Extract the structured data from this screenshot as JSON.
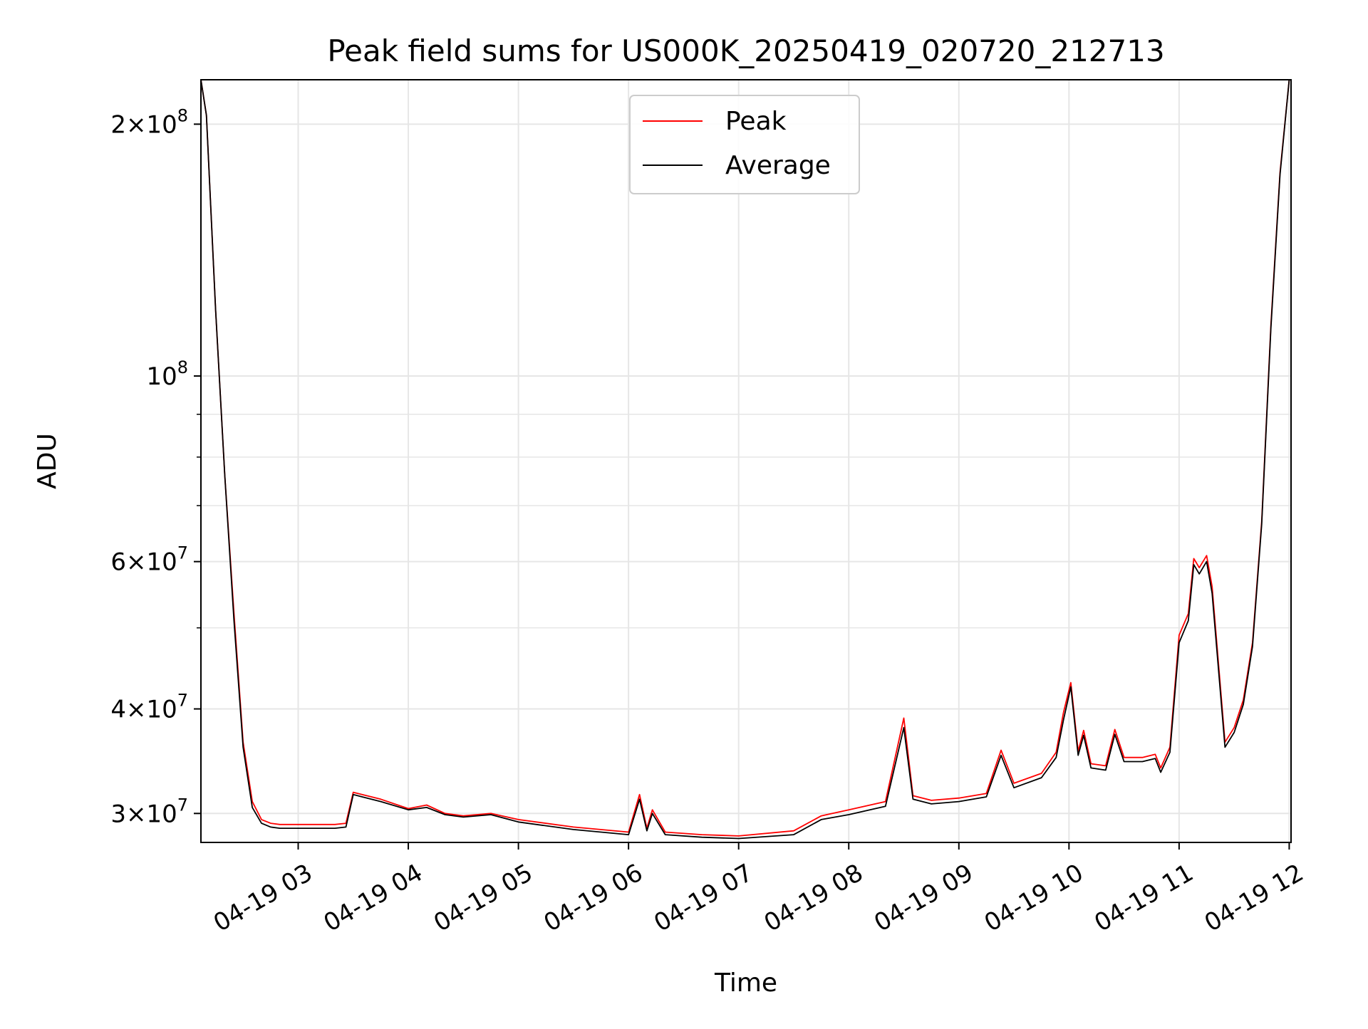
{
  "chart_data": {
    "type": "line",
    "title": "Peak field sums for US000K_20250419_020720_212713",
    "xlabel": "Time",
    "ylabel": "ADU",
    "yscale": "log",
    "ylim": [
      27700000,
      226000000
    ],
    "xlim": [
      "2025-04-19 02:07",
      "2025-04-19 12:01"
    ],
    "grid": true,
    "legend_position": "top-center",
    "x_ticks": [
      {
        "value": "2025-04-19 03:00",
        "label": "04-19 03"
      },
      {
        "value": "2025-04-19 04:00",
        "label": "04-19 04"
      },
      {
        "value": "2025-04-19 05:00",
        "label": "04-19 05"
      },
      {
        "value": "2025-04-19 06:00",
        "label": "04-19 06"
      },
      {
        "value": "2025-04-19 07:00",
        "label": "04-19 07"
      },
      {
        "value": "2025-04-19 08:00",
        "label": "04-19 08"
      },
      {
        "value": "2025-04-19 09:00",
        "label": "04-19 09"
      },
      {
        "value": "2025-04-19 10:00",
        "label": "04-19 10"
      },
      {
        "value": "2025-04-19 11:00",
        "label": "04-19 11"
      },
      {
        "value": "2025-04-19 12:00",
        "label": "04-19 12"
      }
    ],
    "y_ticks": [
      {
        "value": 30000000,
        "mantissa": "3",
        "exponent": "7",
        "plain": false
      },
      {
        "value": 40000000,
        "mantissa": "4",
        "exponent": "7",
        "plain": false
      },
      {
        "value": 60000000,
        "mantissa": "6",
        "exponent": "7",
        "plain": false
      },
      {
        "value": 100000000,
        "mantissa": "",
        "exponent": "8",
        "plain": true
      },
      {
        "value": 200000000,
        "mantissa": "2",
        "exponent": "8",
        "plain": false
      }
    ],
    "y_minor_ticks": [
      50000000,
      70000000,
      80000000,
      90000000
    ],
    "series": [
      {
        "name": "Peak",
        "color": "#ff0000",
        "x": [
          "2025-04-19 02:07",
          "2025-04-19 02:10",
          "2025-04-19 02:15",
          "2025-04-19 02:20",
          "2025-04-19 02:25",
          "2025-04-19 02:30",
          "2025-04-19 02:35",
          "2025-04-19 02:40",
          "2025-04-19 02:45",
          "2025-04-19 02:50",
          "2025-04-19 03:00",
          "2025-04-19 03:10",
          "2025-04-19 03:20",
          "2025-04-19 03:26",
          "2025-04-19 03:30",
          "2025-04-19 03:45",
          "2025-04-19 04:00",
          "2025-04-19 04:10",
          "2025-04-19 04:20",
          "2025-04-19 04:30",
          "2025-04-19 04:45",
          "2025-04-19 05:00",
          "2025-04-19 05:30",
          "2025-04-19 06:00",
          "2025-04-19 06:06",
          "2025-04-19 06:10",
          "2025-04-19 06:13",
          "2025-04-19 06:20",
          "2025-04-19 06:40",
          "2025-04-19 07:00",
          "2025-04-19 07:30",
          "2025-04-19 07:45",
          "2025-04-19 08:00",
          "2025-04-19 08:20",
          "2025-04-19 08:30",
          "2025-04-19 08:35",
          "2025-04-19 08:45",
          "2025-04-19 09:00",
          "2025-04-19 09:15",
          "2025-04-19 09:23",
          "2025-04-19 09:30",
          "2025-04-19 09:45",
          "2025-04-19 09:53",
          "2025-04-19 09:57",
          "2025-04-19 10:01",
          "2025-04-19 10:05",
          "2025-04-19 10:08",
          "2025-04-19 10:12",
          "2025-04-19 10:20",
          "2025-04-19 10:25",
          "2025-04-19 10:30",
          "2025-04-19 10:40",
          "2025-04-19 10:47",
          "2025-04-19 10:50",
          "2025-04-19 10:55",
          "2025-04-19 11:00",
          "2025-04-19 11:05",
          "2025-04-19 11:08",
          "2025-04-19 11:11",
          "2025-04-19 11:15",
          "2025-04-19 11:18",
          "2025-04-19 11:25",
          "2025-04-19 11:30",
          "2025-04-19 11:35",
          "2025-04-19 11:40",
          "2025-04-19 11:45",
          "2025-04-19 11:50",
          "2025-04-19 11:55",
          "2025-04-19 12:00"
        ],
        "values": [
          226000000,
          205000000,
          120000000,
          76000000,
          52000000,
          36500000,
          31000000,
          29500000,
          29200000,
          29100000,
          29100000,
          29100000,
          29100000,
          29200000,
          31800000,
          31200000,
          30400000,
          30700000,
          30000000,
          29800000,
          30000000,
          29500000,
          28900000,
          28500000,
          31600000,
          28800000,
          30300000,
          28500000,
          28300000,
          28200000,
          28600000,
          29800000,
          30300000,
          31000000,
          39000000,
          31500000,
          31100000,
          31300000,
          31700000,
          35700000,
          32600000,
          33500000,
          35500000,
          39600000,
          43000000,
          35600000,
          37700000,
          34400000,
          34200000,
          37800000,
          35000000,
          35000000,
          35300000,
          34000000,
          36000000,
          49000000,
          52000000,
          60500000,
          59000000,
          61000000,
          56000000,
          36500000,
          38000000,
          41000000,
          48000000,
          67000000,
          115000000,
          175000000,
          226000000
        ]
      },
      {
        "name": "Average",
        "color": "#000000",
        "x": [
          "2025-04-19 02:07",
          "2025-04-19 02:10",
          "2025-04-19 02:15",
          "2025-04-19 02:20",
          "2025-04-19 02:25",
          "2025-04-19 02:30",
          "2025-04-19 02:35",
          "2025-04-19 02:40",
          "2025-04-19 02:45",
          "2025-04-19 02:50",
          "2025-04-19 03:00",
          "2025-04-19 03:10",
          "2025-04-19 03:20",
          "2025-04-19 03:26",
          "2025-04-19 03:30",
          "2025-04-19 03:45",
          "2025-04-19 04:00",
          "2025-04-19 04:10",
          "2025-04-19 04:20",
          "2025-04-19 04:30",
          "2025-04-19 04:45",
          "2025-04-19 05:00",
          "2025-04-19 05:30",
          "2025-04-19 06:00",
          "2025-04-19 06:06",
          "2025-04-19 06:10",
          "2025-04-19 06:13",
          "2025-04-19 06:20",
          "2025-04-19 06:40",
          "2025-04-19 07:00",
          "2025-04-19 07:30",
          "2025-04-19 07:45",
          "2025-04-19 08:00",
          "2025-04-19 08:20",
          "2025-04-19 08:30",
          "2025-04-19 08:35",
          "2025-04-19 08:45",
          "2025-04-19 09:00",
          "2025-04-19 09:15",
          "2025-04-19 09:23",
          "2025-04-19 09:30",
          "2025-04-19 09:45",
          "2025-04-19 09:53",
          "2025-04-19 09:57",
          "2025-04-19 10:01",
          "2025-04-19 10:05",
          "2025-04-19 10:08",
          "2025-04-19 10:12",
          "2025-04-19 10:20",
          "2025-04-19 10:25",
          "2025-04-19 10:30",
          "2025-04-19 10:40",
          "2025-04-19 10:47",
          "2025-04-19 10:50",
          "2025-04-19 10:55",
          "2025-04-19 11:00",
          "2025-04-19 11:05",
          "2025-04-19 11:08",
          "2025-04-19 11:11",
          "2025-04-19 11:15",
          "2025-04-19 11:18",
          "2025-04-19 11:25",
          "2025-04-19 11:30",
          "2025-04-19 11:35",
          "2025-04-19 11:40",
          "2025-04-19 11:45",
          "2025-04-19 11:50",
          "2025-04-19 11:55",
          "2025-04-19 12:00"
        ],
        "values": [
          226000000,
          205000000,
          120000000,
          76000000,
          51000000,
          36000000,
          30500000,
          29200000,
          28900000,
          28800000,
          28800000,
          28800000,
          28800000,
          28900000,
          31600000,
          31000000,
          30300000,
          30500000,
          29900000,
          29700000,
          29900000,
          29300000,
          28700000,
          28300000,
          31200000,
          28600000,
          30000000,
          28300000,
          28100000,
          28000000,
          28300000,
          29500000,
          29900000,
          30600000,
          38000000,
          31200000,
          30800000,
          31000000,
          31400000,
          35200000,
          32200000,
          33100000,
          35000000,
          38800000,
          42500000,
          35200000,
          37200000,
          34000000,
          33800000,
          37300000,
          34600000,
          34600000,
          34900000,
          33600000,
          35500000,
          48000000,
          51000000,
          59500000,
          58000000,
          60000000,
          55000000,
          36000000,
          37500000,
          40500000,
          47500000,
          66500000,
          114000000,
          174000000,
          226000000
        ]
      }
    ]
  }
}
